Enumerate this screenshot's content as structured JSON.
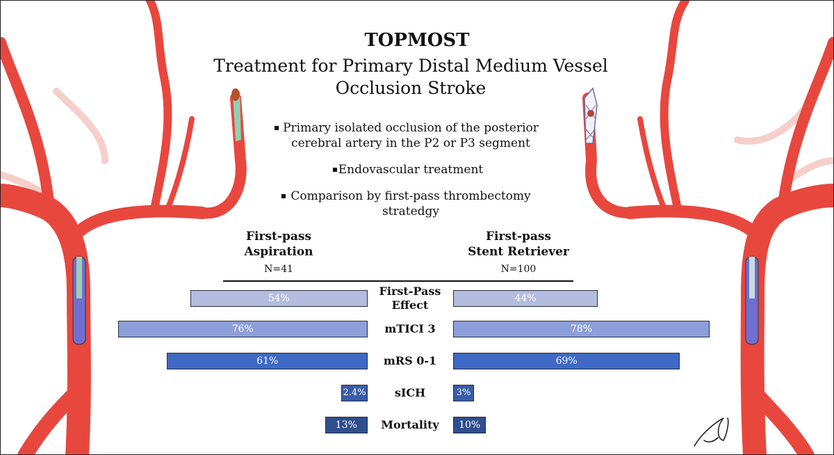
{
  "header": {
    "title": "TOPMOST",
    "subtitle_lines": [
      "Treatment for Primary Distal Medium Vessel",
      "Occlusion Stroke"
    ]
  },
  "bullets": [
    {
      "lines": [
        "Primary isolated occlusion of the posterior",
        "cerebral artery in the P2 or P3 segment"
      ]
    },
    {
      "lines": [
        "Endovascular treatment"
      ]
    },
    {
      "lines": [
        "Comparison by first-pass thrombectomy",
        "stratedgy"
      ]
    }
  ],
  "chart_data": {
    "type": "bar",
    "orientation": "horizontal-butterfly",
    "groups": [
      {
        "title_lines": [
          "First-pass",
          "Aspiration"
        ],
        "n": "N=41"
      },
      {
        "title_lines": [
          "First-pass",
          "Stent Retriever"
        ],
        "n": "N=100"
      }
    ],
    "categories": [
      {
        "label_lines": [
          "First-Pass",
          "Effect"
        ],
        "color": "#b4bcdf"
      },
      {
        "label_lines": [
          "mTICI 3"
        ],
        "color": "#8d9fd8"
      },
      {
        "label_lines": [
          "mRS 0-1"
        ],
        "color": "#3f69c4"
      },
      {
        "label_lines": [
          "sICH"
        ],
        "color": "#3a5ca6"
      },
      {
        "label_lines": [
          "Mortality"
        ],
        "color": "#2e4e8e"
      }
    ],
    "series": [
      {
        "name": "First-pass Aspiration",
        "values": [
          54,
          76,
          61,
          2.4,
          13
        ],
        "labels": [
          "54%",
          "76%",
          "61%",
          "2.4%",
          "13%"
        ]
      },
      {
        "name": "First-pass Stent Retriever",
        "values": [
          44,
          78,
          69,
          3,
          10
        ],
        "labels": [
          "44%",
          "78%",
          "69%",
          "3%",
          "10%"
        ]
      }
    ],
    "xlim": [
      0,
      78
    ]
  }
}
